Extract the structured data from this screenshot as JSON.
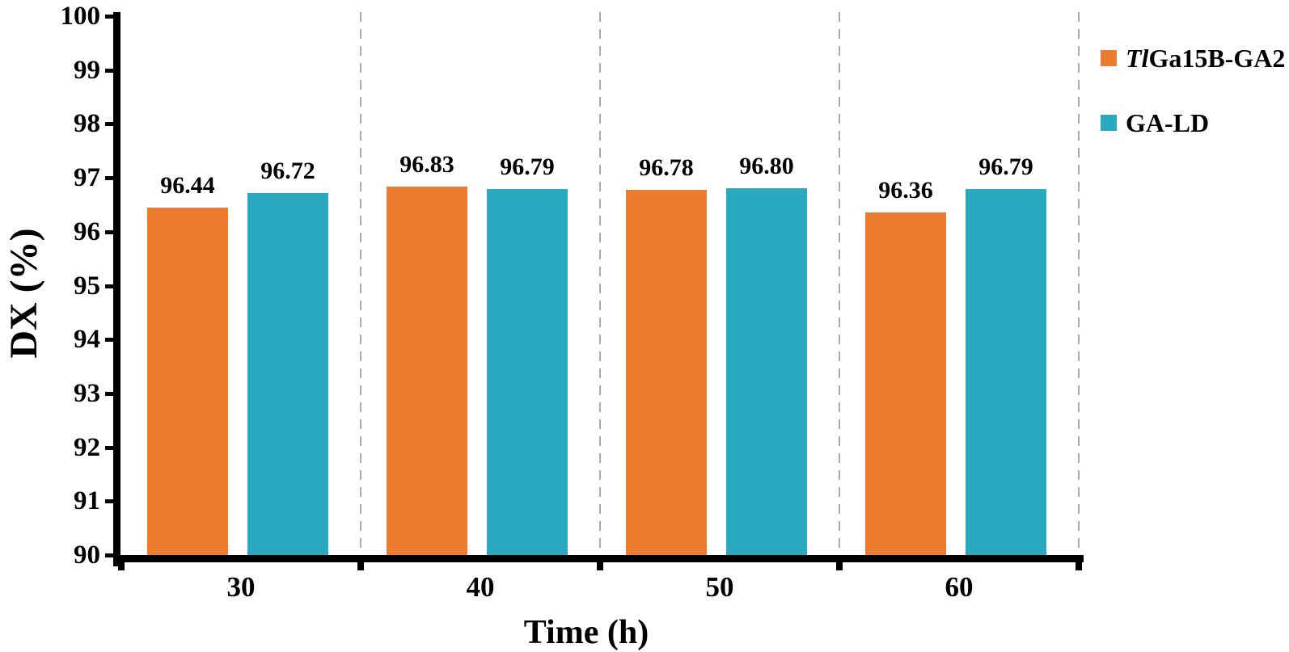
{
  "chart_data": {
    "type": "bar",
    "title": "",
    "xlabel": "Time (h)",
    "ylabel": "DX (%)",
    "categories": [
      "30",
      "40",
      "50",
      "60"
    ],
    "series": [
      {
        "name": "TlGa15B-GA2",
        "name_italic": "Tl",
        "name_rest": "Ga15B-GA2",
        "color": "#ED7C31",
        "values": [
          96.44,
          96.83,
          96.78,
          96.36
        ],
        "labels": [
          "96.44",
          "96.83",
          "96.78",
          "96.36"
        ]
      },
      {
        "name": "GA-LD",
        "name_italic": "",
        "name_rest": "GA-LD",
        "color": "#2AA9C1",
        "values": [
          96.72,
          96.79,
          96.8,
          96.79
        ],
        "labels": [
          "96.72",
          "96.79",
          "96.80",
          "96.79"
        ]
      }
    ],
    "ylim": [
      90,
      100
    ],
    "yticks": [
      100,
      99,
      98,
      97,
      96,
      95,
      94,
      93,
      92,
      91,
      90
    ],
    "grid": {
      "style": "vertical-dashed",
      "color": "#ABABAB"
    },
    "axis_color": "#000000",
    "legend_position": "right",
    "value_labels": true
  }
}
